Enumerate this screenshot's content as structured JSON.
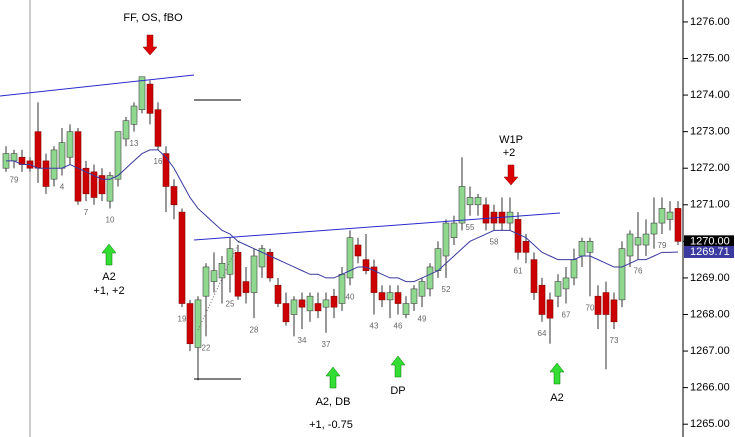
{
  "chart_data": {
    "type": "candlestick",
    "categories": [
      null,
      "79",
      null,
      null,
      null,
      null,
      null,
      "4",
      null,
      null,
      "7",
      null,
      null,
      "10",
      null,
      null,
      "13",
      null,
      null,
      "16",
      null,
      null,
      "19",
      null,
      null,
      "22",
      null,
      null,
      "25",
      null,
      null,
      "28",
      null,
      null,
      null,
      null,
      null,
      "34",
      null,
      null,
      "37",
      null,
      null,
      "40",
      null,
      null,
      "43",
      null,
      null,
      "46",
      null,
      null,
      "49",
      null,
      null,
      "52",
      null,
      null,
      "55",
      null,
      null,
      "58",
      null,
      null,
      "61",
      null,
      null,
      "64",
      null,
      null,
      "67",
      null,
      null,
      "70",
      null,
      null,
      "73",
      null,
      null,
      "76",
      null,
      null,
      "79",
      null,
      null
    ],
    "open": [
      1272.0,
      1272.2,
      1272.3,
      1272.2,
      1273.0,
      1272.2,
      1271.7,
      1272.0,
      1272.3,
      1273.0,
      1272.0,
      1271.9,
      1271.8,
      1271.1,
      1271.7,
      1272.8,
      1273.2,
      1273.6,
      1274.3,
      1273.6,
      1272.4,
      1271.5,
      1270.8,
      1268.3,
      1267.1,
      1268.5,
      1268.9,
      1269.0,
      1269.1,
      1269.7,
      1268.9,
      1268.6,
      1269.3,
      1269.7,
      1268.8,
      1268.3,
      1268.0,
      1268.4,
      1268.1,
      1268.3,
      1268.2,
      1268.5,
      1268.3,
      1269.0,
      1269.9,
      1269.5,
      1269.3,
      1268.6,
      1268.4,
      1268.6,
      1268.0,
      1268.3,
      1268.5,
      1268.7,
      1269.2,
      1269.6,
      1270.1,
      1270.5,
      1271.0,
      1271.0,
      1271.0,
      1270.8,
      1270.8,
      1270.5,
      1270.6,
      1270.0,
      1269.5,
      1268.8,
      1268.4,
      1268.5,
      1268.7,
      1269.0,
      1269.6,
      1269.7,
      1268.5,
      1268.6,
      1268.4,
      1268.4,
      1269.6,
      1269.9,
      1269.9,
      1270.2,
      1270.5,
      1270.6,
      1270.9
    ],
    "high": [
      1272.6,
      1272.5,
      1272.5,
      1272.3,
      1273.8,
      1272.4,
      1272.6,
      1273.1,
      1273.2,
      1273.1,
      1272.2,
      1272.1,
      1272.0,
      1271.9,
      1273.0,
      1273.4,
      1273.8,
      1274.5,
      1274.4,
      1273.8,
      1272.6,
      1271.7,
      1270.9,
      1268.4,
      1268.5,
      1269.4,
      1269.7,
      1269.6,
      1270.1,
      1269.9,
      1269.3,
      1269.8,
      1269.9,
      1269.8,
      1269.0,
      1268.6,
      1268.5,
      1268.6,
      1268.6,
      1268.6,
      1268.6,
      1268.7,
      1269.3,
      1270.3,
      1270.1,
      1270.2,
      1269.5,
      1268.8,
      1268.8,
      1268.8,
      1268.5,
      1268.8,
      1269.0,
      1269.4,
      1270.0,
      1270.6,
      1270.7,
      1272.3,
      1271.5,
      1271.3,
      1271.2,
      1271.0,
      1271.2,
      1271.2,
      1270.8,
      1270.2,
      1269.7,
      1269.0,
      1268.6,
      1269.1,
      1269.3,
      1269.8,
      1270.1,
      1270.1,
      1268.8,
      1268.9,
      1268.6,
      1270.0,
      1270.3,
      1270.8,
      1270.6,
      1271.2,
      1271.2,
      1271.1,
      1271.1
    ],
    "low": [
      1271.9,
      1272.0,
      1271.9,
      1271.9,
      1271.6,
      1271.3,
      1271.5,
      1271.8,
      1272.1,
      1271.0,
      1271.1,
      1271.0,
      1271.1,
      1270.9,
      1271.5,
      1272.6,
      1273.0,
      1273.5,
      1273.2,
      1272.5,
      1270.8,
      1270.6,
      1268.2,
      1267.0,
      1266.2,
      1267.4,
      1268.6,
      1268.3,
      1268.6,
      1268.4,
      1268.3,
      1267.9,
      1269.0,
      1268.9,
      1268.2,
      1267.7,
      1267.4,
      1267.6,
      1267.8,
      1267.9,
      1267.5,
      1267.9,
      1268.1,
      1268.8,
      1269.4,
      1269.1,
      1268.0,
      1268.2,
      1267.9,
      1268.0,
      1267.9,
      1268.1,
      1268.2,
      1268.5,
      1269.0,
      1269.0,
      1269.9,
      1270.3,
      1270.7,
      1270.7,
      1270.3,
      1270.3,
      1270.3,
      1270.3,
      1269.5,
      1269.4,
      1268.4,
      1267.8,
      1267.2,
      1268.2,
      1268.3,
      1268.8,
      1269.3,
      1268.5,
      1267.6,
      1266.5,
      1267.6,
      1268.2,
      1269.3,
      1269.5,
      1269.6,
      1269.8,
      1270.2,
      1270.3,
      1269.9
    ],
    "close": [
      1272.4,
      1272.4,
      1272.1,
      1272.0,
      1272.0,
      1271.5,
      1272.5,
      1272.7,
      1273.0,
      1271.1,
      1271.3,
      1271.2,
      1271.3,
      1271.8,
      1273.0,
      1273.3,
      1273.7,
      1274.5,
      1273.5,
      1272.6,
      1271.5,
      1271.0,
      1268.3,
      1267.2,
      1268.4,
      1269.3,
      1269.2,
      1269.4,
      1269.8,
      1268.5,
      1268.6,
      1269.6,
      1269.8,
      1269.0,
      1268.3,
      1267.8,
      1268.4,
      1268.2,
      1268.5,
      1268.1,
      1268.4,
      1268.2,
      1269.1,
      1270.1,
      1269.6,
      1269.2,
      1268.6,
      1268.4,
      1268.6,
      1268.3,
      1268.3,
      1268.7,
      1268.9,
      1269.3,
      1269.8,
      1270.5,
      1270.5,
      1271.5,
      1271.2,
      1271.2,
      1270.5,
      1270.5,
      1270.5,
      1270.8,
      1269.7,
      1269.7,
      1268.6,
      1268.0,
      1267.9,
      1268.9,
      1269.0,
      1269.5,
      1270.0,
      1270.0,
      1268.0,
      1268.0,
      1267.8,
      1269.8,
      1270.2,
      1270.1,
      1270.2,
      1270.5,
      1270.9,
      1270.8,
      1270.0
    ],
    "up_color": "#8fd88f",
    "down_color": "#cc0000",
    "ema": {
      "color": "#3a3aa0",
      "values": [
        1272.2,
        1272.2,
        1272.1,
        1272.1,
        1272.0,
        1272.0,
        1272.0,
        1272.0,
        1272.1,
        1272.0,
        1271.9,
        1271.8,
        1271.7,
        1271.7,
        1271.8,
        1272.0,
        1272.2,
        1272.4,
        1272.5,
        1272.5,
        1272.3,
        1272.0,
        1271.6,
        1271.2,
        1270.9,
        1270.7,
        1270.5,
        1270.3,
        1270.2,
        1270.0,
        1269.9,
        1269.8,
        1269.7,
        1269.6,
        1269.5,
        1269.4,
        1269.3,
        1269.2,
        1269.1,
        1269.1,
        1269.0,
        1269.0,
        1269.1,
        1269.2,
        1269.3,
        1269.3,
        1269.2,
        1269.1,
        1269.0,
        1269.0,
        1268.9,
        1268.9,
        1269.0,
        1269.1,
        1269.2,
        1269.4,
        1269.6,
        1269.8,
        1270.0,
        1270.1,
        1270.2,
        1270.3,
        1270.3,
        1270.3,
        1270.2,
        1270.1,
        1269.9,
        1269.7,
        1269.6,
        1269.5,
        1269.5,
        1269.5,
        1269.6,
        1269.6,
        1269.5,
        1269.4,
        1269.3,
        1269.3,
        1269.4,
        1269.5,
        1269.5,
        1269.6,
        1269.7,
        1269.7,
        1269.71
      ]
    },
    "ylim": [
      1264.65,
      1276.6
    ],
    "yticks": [
      {
        "value": 1265,
        "label": "1265.00"
      },
      {
        "value": 1266,
        "label": "1266.00"
      },
      {
        "value": 1267,
        "label": "1267.00"
      },
      {
        "value": 1268,
        "label": "1268.00"
      },
      {
        "value": 1269,
        "label": "1269.00"
      },
      {
        "value": 1270,
        "label": "1270.00"
      },
      {
        "value": 1271,
        "label": "1271.00"
      },
      {
        "value": 1272,
        "label": "1272.00"
      },
      {
        "value": 1273,
        "label": "1273.00"
      },
      {
        "value": 1274,
        "label": "1274.00"
      },
      {
        "value": 1275,
        "label": "1275.00"
      },
      {
        "value": 1276,
        "label": "1276.00"
      }
    ],
    "price_tags": [
      {
        "value": 1270,
        "label": "1270.00",
        "color": "#000000"
      },
      {
        "value": 1269.71,
        "label": "1269.71",
        "color": "#3a3aa0"
      }
    ],
    "annotations": [
      "FF, OS, fBO",
      "A2",
      "+1, +2",
      "W1P",
      "+2",
      "A2, DB",
      "+1, -0.75",
      "DP",
      "A2"
    ],
    "grid": false
  }
}
